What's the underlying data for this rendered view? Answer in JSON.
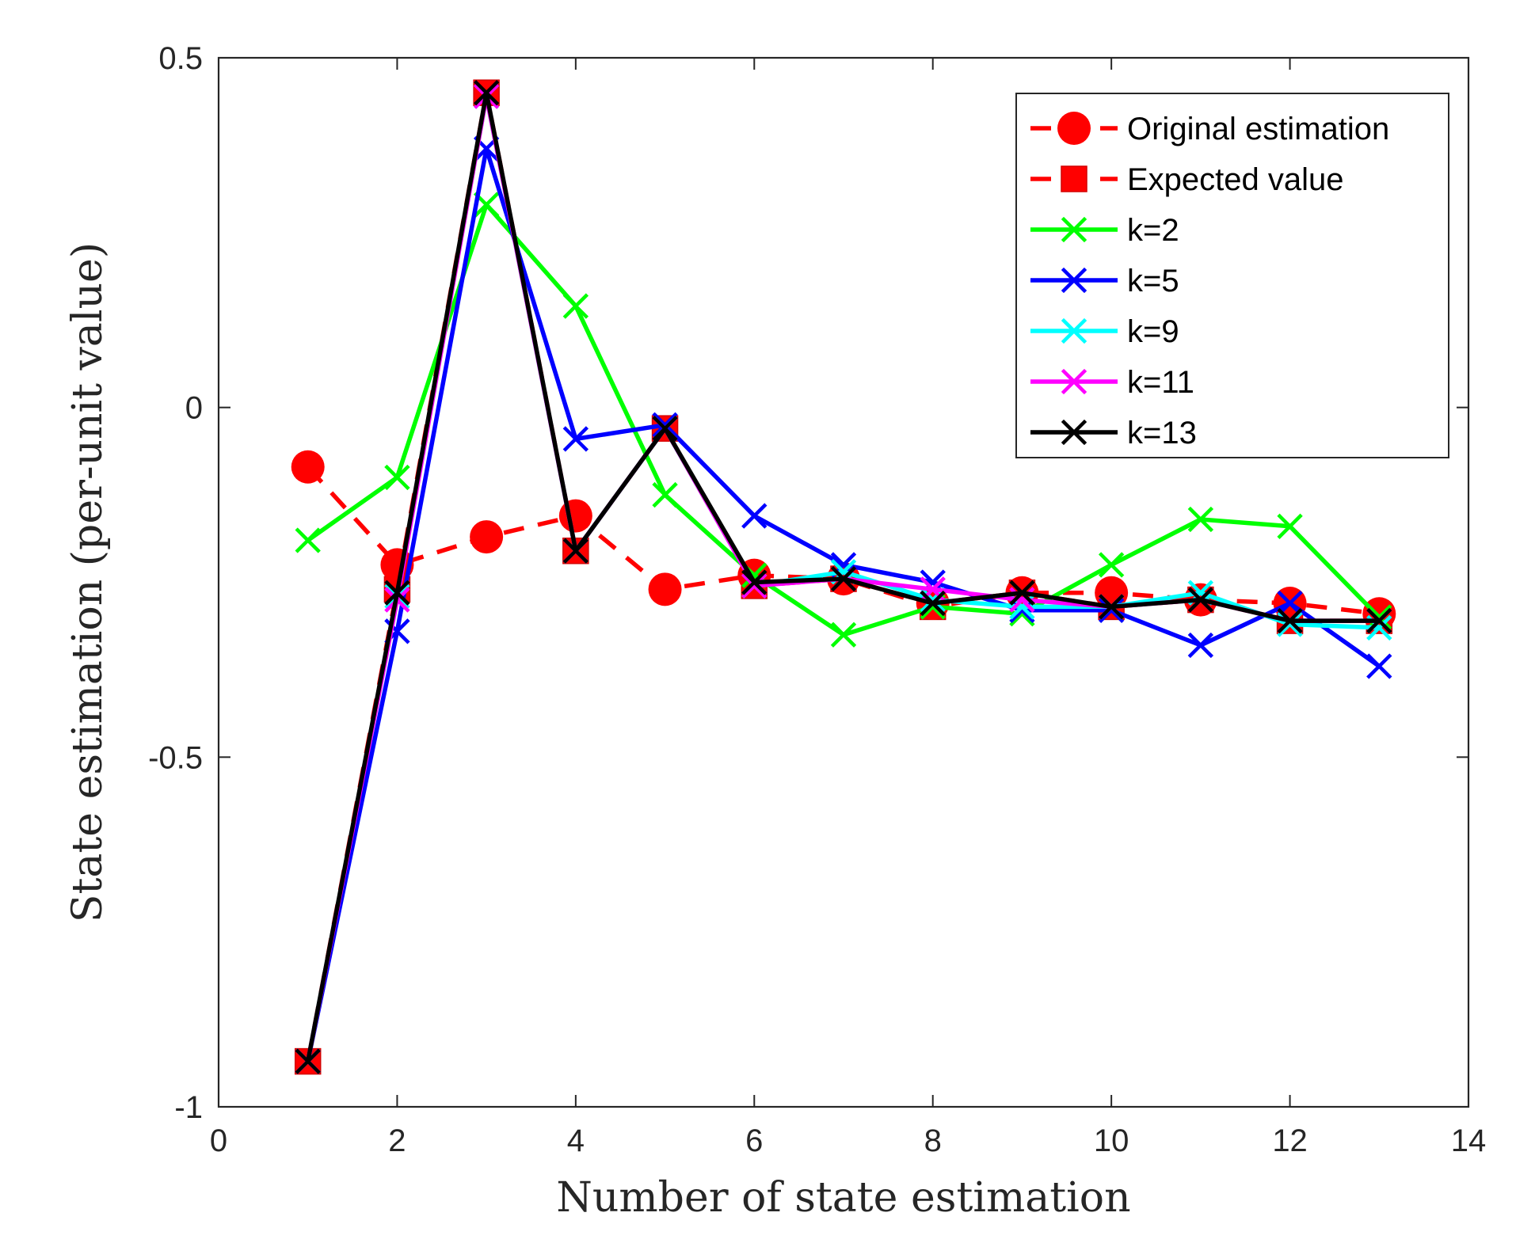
{
  "chart_data": {
    "type": "line",
    "title": "",
    "xlabel": "Number of state estimation",
    "ylabel": "State estimation (per-unit value)",
    "xlim": [
      0,
      14
    ],
    "ylim": [
      -1,
      0.5
    ],
    "xticks": [
      0,
      2,
      4,
      6,
      8,
      10,
      12,
      14
    ],
    "xtick_labels": [
      "0",
      "2",
      "4",
      "6",
      "8",
      "10",
      "12",
      "14"
    ],
    "yticks": [
      -1,
      -0.5,
      0,
      0.5
    ],
    "ytick_labels": [
      "-1",
      "-0.5",
      "0",
      "0.5"
    ],
    "grid": false,
    "legend_position": "top-right",
    "x": [
      1,
      2,
      3,
      4,
      5,
      6,
      7,
      8,
      9,
      10,
      11,
      12,
      13
    ],
    "series": [
      {
        "name": "Original estimation",
        "color": "#ff0000",
        "line_style": "dash",
        "marker": "circle",
        "values": [
          -0.085,
          -0.225,
          -0.185,
          -0.155,
          -0.26,
          -0.24,
          -0.245,
          -0.28,
          -0.265,
          -0.265,
          -0.275,
          -0.28,
          -0.295
        ]
      },
      {
        "name": "Expected value",
        "color": "#ff0000",
        "line_style": "dash",
        "marker": "square",
        "values": [
          -0.935,
          -0.26,
          0.45,
          -0.205,
          -0.03,
          -0.255,
          -0.245,
          -0.285,
          -0.265,
          -0.285,
          -0.275,
          -0.305,
          -0.305
        ]
      },
      {
        "name": "k=2",
        "color": "#00ff00",
        "line_style": "solid",
        "marker": "x",
        "values": [
          -0.19,
          -0.1,
          0.29,
          0.145,
          -0.125,
          -0.24,
          -0.325,
          -0.285,
          -0.295,
          -0.225,
          -0.16,
          -0.17,
          -0.3
        ]
      },
      {
        "name": "k=5",
        "color": "#0000ff",
        "line_style": "solid",
        "marker": "x",
        "values": [
          -0.935,
          -0.32,
          0.37,
          -0.045,
          -0.025,
          -0.155,
          -0.225,
          -0.25,
          -0.29,
          -0.29,
          -0.34,
          -0.28,
          -0.37
        ]
      },
      {
        "name": "k=9",
        "color": "#00ffff",
        "line_style": "solid",
        "marker": "x",
        "values": [
          -0.935,
          -0.27,
          0.445,
          -0.205,
          -0.03,
          -0.255,
          -0.235,
          -0.275,
          -0.285,
          -0.285,
          -0.265,
          -0.31,
          -0.315
        ]
      },
      {
        "name": "k=11",
        "color": "#ff00ff",
        "line_style": "solid",
        "marker": "x",
        "values": [
          -0.935,
          -0.275,
          0.445,
          -0.205,
          -0.03,
          -0.255,
          -0.245,
          -0.26,
          -0.275,
          -0.285,
          -0.275,
          -0.305,
          -0.305
        ]
      },
      {
        "name": "k=13",
        "color": "#000000",
        "line_style": "solid",
        "marker": "x",
        "values": [
          -0.935,
          -0.265,
          0.45,
          -0.205,
          -0.03,
          -0.25,
          -0.245,
          -0.28,
          -0.265,
          -0.285,
          -0.275,
          -0.305,
          -0.305
        ]
      }
    ]
  }
}
